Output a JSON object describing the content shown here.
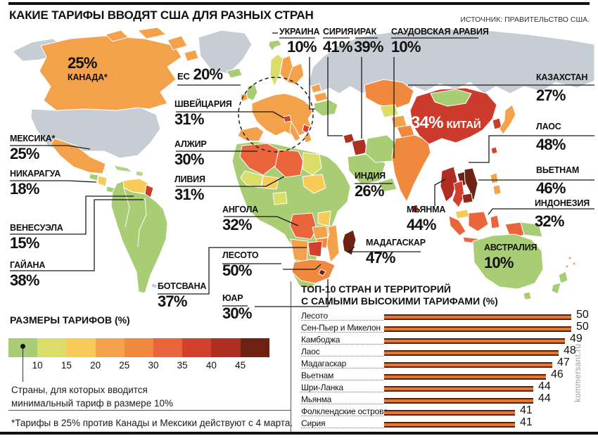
{
  "header": {
    "title": "КАКИЕ ТАРИФЫ ВВОДЯТ США ДЛЯ РАЗНЫХ СТРАН",
    "source": "ИСТОЧНИК: ПРАВИТЕЛЬСТВО США."
  },
  "map": {
    "labels": {
      "canada": {
        "name": "КАНАДА*",
        "value": "25%"
      },
      "eu": {
        "name": "ЕС",
        "value": "20%"
      },
      "ukraine": {
        "name": "УКРАИНА",
        "value": "10%"
      },
      "syria": {
        "name": "СИРИЯ",
        "value": "41%"
      },
      "iraq": {
        "name": "ИРАК",
        "value": "39%"
      },
      "saudi_arabia": {
        "name": "САУДОВСКАЯ АРАВИЯ",
        "value": "10%"
      },
      "kazakhstan": {
        "name": "КАЗАХСТАН",
        "value": "27%"
      },
      "switzerland": {
        "name": "ШВЕЙЦАРИЯ",
        "value": "31%"
      },
      "mexico": {
        "name": "МЕКСИКА*",
        "value": "25%"
      },
      "algeria": {
        "name": "АЛЖИР",
        "value": "30%"
      },
      "nicaragua": {
        "name": "НИКАРАГУА",
        "value": "18%"
      },
      "libya": {
        "name": "ЛИВИЯ",
        "value": "31%"
      },
      "india": {
        "name": "ИНДИЯ",
        "value": "26%"
      },
      "laos": {
        "name": "ЛАОС",
        "value": "48%"
      },
      "china": {
        "name": "КИТАЙ",
        "value": "34%"
      },
      "vietnam": {
        "name": "ВЬЕТНАМ",
        "value": "46%"
      },
      "venezuela": {
        "name": "ВЕНЕСУЭЛА",
        "value": "15%"
      },
      "angola": {
        "name": "АНГОЛА",
        "value": "32%"
      },
      "myanmar": {
        "name": "МЬЯНМА",
        "value": "44%"
      },
      "indonesia": {
        "name": "ИНДОНЕЗИЯ",
        "value": "32%"
      },
      "guyana": {
        "name": "ГАЙАНА",
        "value": "38%"
      },
      "lesotho": {
        "name": "ЛЕСОТО",
        "value": "50%"
      },
      "madagascar": {
        "name": "МАДАГАСКАР",
        "value": "47%"
      },
      "australia": {
        "name": "АВСТРАЛИЯ",
        "value": "10%"
      },
      "botswana": {
        "name": "БОТСВАНА",
        "value": "37%"
      },
      "south_africa": {
        "name": "ЮАР",
        "value": "30%"
      }
    }
  },
  "legend": {
    "title": "РАЗМЕРЫ ТАРИФОВ (%)",
    "ticks": [
      "10",
      "15",
      "20",
      "25",
      "30",
      "35",
      "40",
      "45"
    ],
    "colors": [
      "#a9cd74",
      "#dade68",
      "#f8ca58",
      "#f4a14c",
      "#f0883e",
      "#ea643c",
      "#d4402e",
      "#b02d22",
      "#6e2213"
    ],
    "note_line1": "Страны, для которых вводится",
    "note_line2": "минимальный тариф в размере 10%"
  },
  "footnote": "*Тарифы в 25% против Канады и Мексики действуют с 4 марта.",
  "top10": {
    "title_line1": "ТОП-10 СТРАН И ТЕРРИТОРИЙ",
    "title_line2": "С САМЫМИ ВЫСОКИМИ ТАРИФАМИ (%)",
    "rows": [
      {
        "label": "Лесото",
        "value": 50
      },
      {
        "label": "Сен-Пьер и Микелон",
        "value": 50
      },
      {
        "label": "Камбоджа",
        "value": 49
      },
      {
        "label": "Лаос",
        "value": 48
      },
      {
        "label": "Мадагаскар",
        "value": 47
      },
      {
        "label": "Вьетнам",
        "value": 46
      },
      {
        "label": "Шри-Ланка",
        "value": 44
      },
      {
        "label": "Мьянма",
        "value": 44
      },
      {
        "label": "Фолклендские острова",
        "value": 41
      },
      {
        "label": "Сирия",
        "value": 41
      }
    ]
  },
  "watermark": "kommersant.ru",
  "chart_data": [
    {
      "type": "heatmap",
      "subtype": "choropleth-world-map",
      "title": "КАКИЕ ТАРИФЫ ВВОДЯТ США ДЛЯ РАЗНЫХ СТРАН",
      "unit": "%",
      "points": [
        {
          "country": "Канада",
          "value": 25
        },
        {
          "country": "ЕС",
          "value": 20
        },
        {
          "country": "Украина",
          "value": 10
        },
        {
          "country": "Сирия",
          "value": 41
        },
        {
          "country": "Ирак",
          "value": 39
        },
        {
          "country": "Саудовская Аравия",
          "value": 10
        },
        {
          "country": "Казахстан",
          "value": 27
        },
        {
          "country": "Швейцария",
          "value": 31
        },
        {
          "country": "Мексика",
          "value": 25
        },
        {
          "country": "Алжир",
          "value": 30
        },
        {
          "country": "Никарагуа",
          "value": 18
        },
        {
          "country": "Ливия",
          "value": 31
        },
        {
          "country": "Индия",
          "value": 26
        },
        {
          "country": "Лаос",
          "value": 48
        },
        {
          "country": "Китай",
          "value": 34
        },
        {
          "country": "Вьетнам",
          "value": 46
        },
        {
          "country": "Венесуэла",
          "value": 15
        },
        {
          "country": "Ангола",
          "value": 32
        },
        {
          "country": "Мьянма",
          "value": 44
        },
        {
          "country": "Индонезия",
          "value": 32
        },
        {
          "country": "Гайана",
          "value": 38
        },
        {
          "country": "Лесото",
          "value": 50
        },
        {
          "country": "Мадагаскар",
          "value": 47
        },
        {
          "country": "Австралия",
          "value": 10
        },
        {
          "country": "Ботсвана",
          "value": 37
        },
        {
          "country": "ЮАР",
          "value": 30
        }
      ],
      "legend": {
        "label": "РАЗМЕРЫ ТАРИФОВ (%)",
        "bins": [
          10,
          15,
          20,
          25,
          30,
          35,
          40,
          45
        ],
        "position": "bottom-left"
      }
    },
    {
      "type": "bar",
      "orientation": "horizontal",
      "title": "ТОП-10 СТРАН И ТЕРРИТОРИЙ С САМЫМИ ВЫСОКИМИ ТАРИФАМИ (%)",
      "categories": [
        "Лесото",
        "Сен-Пьер и Микелон",
        "Камбоджа",
        "Лаос",
        "Мадагаскар",
        "Вьетнам",
        "Шри-Ланка",
        "Мьянма",
        "Фолклендские острова",
        "Сирия"
      ],
      "values": [
        50,
        50,
        49,
        48,
        47,
        46,
        44,
        44,
        41,
        41
      ],
      "grid": false,
      "legend_position": "none"
    }
  ]
}
